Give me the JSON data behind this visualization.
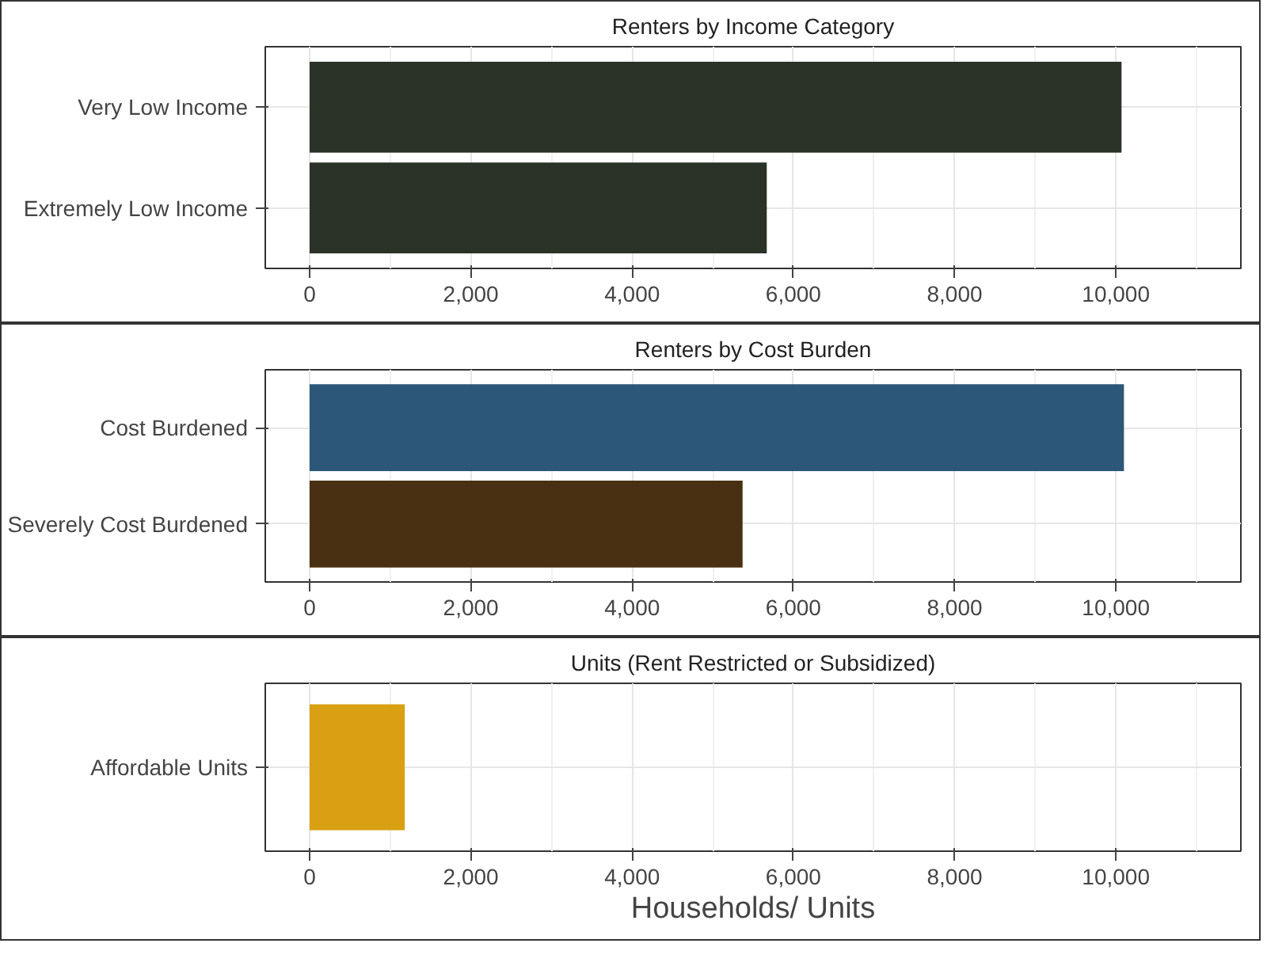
{
  "chart_data": [
    {
      "type": "bar",
      "orientation": "horizontal",
      "title": "Renters by Income Category",
      "categories": [
        "Very Low Income",
        "Extremely Low Income"
      ],
      "values": [
        10070,
        5670
      ],
      "colors": [
        "#2b3329",
        "#2b3329"
      ],
      "xlim": [
        -550,
        11550
      ],
      "xticks": [
        0,
        {
          "value": 2000,
          "label": "2,000"
        },
        {
          "value": 4000,
          "label": "4,000"
        },
        {
          "value": 6000,
          "label": "6,000"
        },
        {
          "value": 8000,
          "label": "8,000"
        },
        {
          "value": 10000,
          "label": "10,000"
        }
      ],
      "grid": true
    },
    {
      "type": "bar",
      "orientation": "horizontal",
      "title": "Renters by Cost Burden",
      "categories": [
        "Cost Burdened",
        "Severely Cost Burdened"
      ],
      "values": [
        10100,
        5370
      ],
      "colors": [
        "#2c5778",
        "#4a3012"
      ],
      "xlim": [
        -550,
        11550
      ],
      "xticks": [
        0,
        {
          "value": 2000,
          "label": "2,000"
        },
        {
          "value": 4000,
          "label": "4,000"
        },
        {
          "value": 6000,
          "label": "6,000"
        },
        {
          "value": 8000,
          "label": "8,000"
        },
        {
          "value": 10000,
          "label": "10,000"
        }
      ],
      "grid": true
    },
    {
      "type": "bar",
      "orientation": "horizontal",
      "title": "Units (Rent Restricted or Subsidized)",
      "xlabel": "Households/ Units",
      "categories": [
        "Affordable Units"
      ],
      "values": [
        1180
      ],
      "colors": [
        "#d8a012"
      ],
      "xlim": [
        -550,
        11550
      ],
      "xticks": [
        0,
        {
          "value": 2000,
          "label": "2,000"
        },
        {
          "value": 4000,
          "label": "4,000"
        },
        {
          "value": 6000,
          "label": "6,000"
        },
        {
          "value": 8000,
          "label": "8,000"
        },
        {
          "value": 10000,
          "label": "10,000"
        }
      ],
      "grid": true
    }
  ]
}
